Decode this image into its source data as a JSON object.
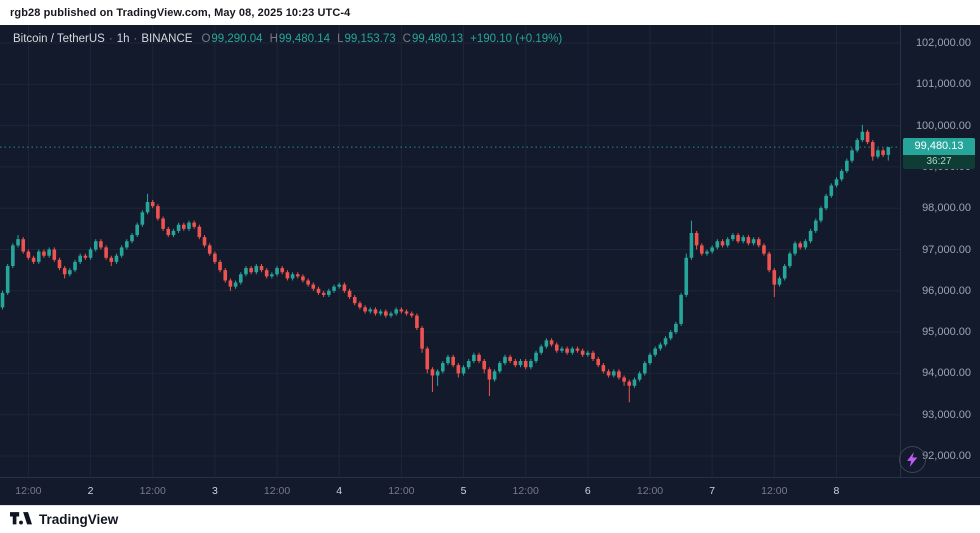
{
  "header": {
    "text": "rgb28 published on TradingView.com, May 08, 2025 10:23 UTC-4"
  },
  "legend": {
    "title": "Bitcoin / TetherUS",
    "dot1": "·",
    "interval": "1h",
    "dot2": "·",
    "exchange": "BINANCE",
    "o_label": "O",
    "o_value": "99,290.04",
    "h_label": "H",
    "h_value": "99,480.14",
    "l_label": "L",
    "l_value": "99,153.73",
    "c_label": "C",
    "c_value": "99,480.13",
    "change": "+190.10 (+0.19%)"
  },
  "last_price": {
    "label": "99,480.13",
    "countdown": "36:27",
    "value": 99480.13
  },
  "footer": {
    "brand": "TradingView"
  },
  "colors": {
    "background": "#131a2b",
    "up": "#26a69a",
    "down": "#ef5350",
    "grid": "#1d2638",
    "separator": "#27314a",
    "axis_text": "#9aa5b5",
    "time_major_text": "#cdd4e0",
    "muted_text": "#787b86",
    "legend_text": "#d6d9e0",
    "countdown_bg": "#0f3d36",
    "countdown_text": "#a9dccb",
    "bolt": "#bd5df5"
  },
  "chart_data": {
    "type": "candlestick",
    "title": "Bitcoin / TetherUS",
    "interval": "1h",
    "exchange": "BINANCE",
    "ohlc_current": {
      "open": 99290.04,
      "high": 99480.14,
      "low": 99153.73,
      "close": 99480.13,
      "change": 190.1,
      "change_pct": 0.19
    },
    "last_price": 99480.13,
    "price_axis": {
      "min": 92000,
      "max": 102000,
      "tick_step": 1000,
      "ticks": [
        {
          "label": "102,000.00",
          "value": 102000
        },
        {
          "label": "101,000.00",
          "value": 101000
        },
        {
          "label": "100,000.00",
          "value": 100000
        },
        {
          "label": "99,000.00",
          "value": 99000
        },
        {
          "label": "98,000.00",
          "value": 98000
        },
        {
          "label": "97,000.00",
          "value": 97000
        },
        {
          "label": "96,000.00",
          "value": 96000
        },
        {
          "label": "95,000.00",
          "value": 95000
        },
        {
          "label": "94,000.00",
          "value": 94000
        },
        {
          "label": "93,000.00",
          "value": 93000
        },
        {
          "label": "92,000.00",
          "value": 92000
        }
      ]
    },
    "time_axis": {
      "ticks": [
        {
          "label": "12:00",
          "index": 5,
          "major": false
        },
        {
          "label": "2",
          "index": 17,
          "major": true
        },
        {
          "label": "12:00",
          "index": 29,
          "major": false
        },
        {
          "label": "3",
          "index": 41,
          "major": true
        },
        {
          "label": "12:00",
          "index": 53,
          "major": false
        },
        {
          "label": "4",
          "index": 65,
          "major": true
        },
        {
          "label": "12:00",
          "index": 77,
          "major": false
        },
        {
          "label": "5",
          "index": 89,
          "major": true
        },
        {
          "label": "12:00",
          "index": 101,
          "major": false
        },
        {
          "label": "6",
          "index": 113,
          "major": true
        },
        {
          "label": "12:00",
          "index": 125,
          "major": false
        },
        {
          "label": "7",
          "index": 137,
          "major": true
        },
        {
          "label": "12:00",
          "index": 149,
          "major": false
        },
        {
          "label": "8",
          "index": 161,
          "major": true
        }
      ]
    },
    "candles": [
      [
        95600,
        96000,
        95550,
        95950
      ],
      [
        95950,
        96650,
        95900,
        96600
      ],
      [
        96600,
        97150,
        96550,
        97100
      ],
      [
        97100,
        97350,
        97050,
        97250
      ],
      [
        97250,
        97300,
        96900,
        96950
      ],
      [
        96950,
        97000,
        96750,
        96800
      ],
      [
        96800,
        96850,
        96650,
        96700
      ],
      [
        96700,
        97000,
        96650,
        96950
      ],
      [
        96950,
        97000,
        96800,
        96850
      ],
      [
        96850,
        97050,
        96800,
        97000
      ],
      [
        97000,
        97050,
        96700,
        96750
      ],
      [
        96750,
        96800,
        96500,
        96550
      ],
      [
        96550,
        96600,
        96300,
        96400
      ],
      [
        96400,
        96550,
        96350,
        96500
      ],
      [
        96500,
        96750,
        96450,
        96700
      ],
      [
        96700,
        96900,
        96650,
        96850
      ],
      [
        96850,
        96900,
        96750,
        96800
      ],
      [
        96800,
        97050,
        96750,
        97000
      ],
      [
        97000,
        97250,
        96950,
        97200
      ],
      [
        97200,
        97250,
        97000,
        97050
      ],
      [
        97050,
        97100,
        96750,
        96800
      ],
      [
        96800,
        96850,
        96600,
        96700
      ],
      [
        96700,
        96900,
        96650,
        96850
      ],
      [
        96850,
        97100,
        96800,
        97050
      ],
      [
        97050,
        97250,
        97000,
        97200
      ],
      [
        97200,
        97400,
        97150,
        97350
      ],
      [
        97350,
        97650,
        97300,
        97600
      ],
      [
        97600,
        97950,
        97550,
        97900
      ],
      [
        97900,
        98350,
        97850,
        98150
      ],
      [
        98150,
        98200,
        98000,
        98050
      ],
      [
        98050,
        98100,
        97700,
        97750
      ],
      [
        97750,
        97800,
        97450,
        97500
      ],
      [
        97500,
        97550,
        97300,
        97350
      ],
      [
        97350,
        97500,
        97300,
        97450
      ],
      [
        97450,
        97650,
        97400,
        97600
      ],
      [
        97600,
        97650,
        97450,
        97500
      ],
      [
        97500,
        97700,
        97450,
        97650
      ],
      [
        97650,
        97700,
        97500,
        97550
      ],
      [
        97550,
        97600,
        97250,
        97300
      ],
      [
        97300,
        97350,
        97050,
        97100
      ],
      [
        97100,
        97150,
        96850,
        96900
      ],
      [
        96900,
        96950,
        96650,
        96700
      ],
      [
        96700,
        96750,
        96450,
        96500
      ],
      [
        96500,
        96550,
        96200,
        96250
      ],
      [
        96250,
        96300,
        96000,
        96100
      ],
      [
        96100,
        96250,
        96050,
        96200
      ],
      [
        96200,
        96450,
        96150,
        96400
      ],
      [
        96400,
        96600,
        96350,
        96550
      ],
      [
        96550,
        96600,
        96400,
        96450
      ],
      [
        96450,
        96650,
        96400,
        96600
      ],
      [
        96600,
        96650,
        96450,
        96500
      ],
      [
        96500,
        96550,
        96300,
        96350
      ],
      [
        96350,
        96450,
        96300,
        96400
      ],
      [
        96400,
        96600,
        96350,
        96550
      ],
      [
        96550,
        96600,
        96400,
        96450
      ],
      [
        96450,
        96500,
        96250,
        96300
      ],
      [
        96300,
        96450,
        96250,
        96400
      ],
      [
        96400,
        96450,
        96300,
        96350
      ],
      [
        96350,
        96400,
        96200,
        96250
      ],
      [
        96250,
        96300,
        96100,
        96150
      ],
      [
        96150,
        96200,
        96000,
        96050
      ],
      [
        96050,
        96100,
        95900,
        95950
      ],
      [
        95950,
        96000,
        95850,
        95900
      ],
      [
        95900,
        96050,
        95850,
        96000
      ],
      [
        96000,
        96150,
        95950,
        96100
      ],
      [
        96100,
        96200,
        96050,
        96150
      ],
      [
        96150,
        96200,
        95950,
        96000
      ],
      [
        96000,
        96050,
        95800,
        95850
      ],
      [
        95850,
        95900,
        95650,
        95700
      ],
      [
        95700,
        95750,
        95550,
        95600
      ],
      [
        95600,
        95650,
        95450,
        95500
      ],
      [
        95500,
        95600,
        95450,
        95550
      ],
      [
        95550,
        95600,
        95400,
        95450
      ],
      [
        95450,
        95550,
        95400,
        95500
      ],
      [
        95500,
        95550,
        95350,
        95400
      ],
      [
        95400,
        95500,
        95350,
        95450
      ],
      [
        95450,
        95600,
        95400,
        95550
      ],
      [
        95550,
        95600,
        95450,
        95500
      ],
      [
        95500,
        95550,
        95400,
        95450
      ],
      [
        95450,
        95500,
        95350,
        95400
      ],
      [
        95400,
        95450,
        95050,
        95100
      ],
      [
        95100,
        95150,
        94500,
        94600
      ],
      [
        94600,
        94650,
        94000,
        94100
      ],
      [
        94100,
        94150,
        93550,
        93950
      ],
      [
        93950,
        94100,
        93700,
        94050
      ],
      [
        94050,
        94300,
        94000,
        94250
      ],
      [
        94250,
        94450,
        94200,
        94400
      ],
      [
        94400,
        94450,
        94150,
        94200
      ],
      [
        94200,
        94250,
        93900,
        94000
      ],
      [
        94000,
        94200,
        93950,
        94150
      ],
      [
        94150,
        94350,
        94100,
        94300
      ],
      [
        94300,
        94500,
        94250,
        94450
      ],
      [
        94450,
        94500,
        94250,
        94300
      ],
      [
        94300,
        94350,
        94000,
        94100
      ],
      [
        94100,
        94150,
        93450,
        93850
      ],
      [
        93850,
        94100,
        93800,
        94050
      ],
      [
        94050,
        94300,
        94000,
        94250
      ],
      [
        94250,
        94450,
        94200,
        94400
      ],
      [
        94400,
        94450,
        94250,
        94300
      ],
      [
        94300,
        94350,
        94150,
        94200
      ],
      [
        94200,
        94350,
        94150,
        94300
      ],
      [
        94300,
        94350,
        94100,
        94150
      ],
      [
        94150,
        94350,
        94100,
        94300
      ],
      [
        94300,
        94550,
        94250,
        94500
      ],
      [
        94500,
        94700,
        94450,
        94650
      ],
      [
        94650,
        94850,
        94600,
        94800
      ],
      [
        94800,
        94850,
        94650,
        94700
      ],
      [
        94700,
        94750,
        94500,
        94550
      ],
      [
        94550,
        94650,
        94500,
        94600
      ],
      [
        94600,
        94650,
        94450,
        94500
      ],
      [
        94500,
        94650,
        94450,
        94600
      ],
      [
        94600,
        94650,
        94500,
        94550
      ],
      [
        94550,
        94600,
        94400,
        94450
      ],
      [
        94450,
        94550,
        94400,
        94500
      ],
      [
        94500,
        94550,
        94300,
        94350
      ],
      [
        94350,
        94400,
        94150,
        94200
      ],
      [
        94200,
        94250,
        94000,
        94050
      ],
      [
        94050,
        94100,
        93900,
        93950
      ],
      [
        93950,
        94100,
        93900,
        94050
      ],
      [
        94050,
        94100,
        93850,
        93900
      ],
      [
        93900,
        93950,
        93700,
        93800
      ],
      [
        93800,
        93850,
        93300,
        93700
      ],
      [
        93700,
        93900,
        93650,
        93850
      ],
      [
        93850,
        94050,
        93800,
        94000
      ],
      [
        94000,
        94300,
        93950,
        94250
      ],
      [
        94250,
        94500,
        94200,
        94450
      ],
      [
        94450,
        94650,
        94400,
        94600
      ],
      [
        94600,
        94750,
        94550,
        94700
      ],
      [
        94700,
        94900,
        94650,
        94850
      ],
      [
        94850,
        95050,
        94800,
        95000
      ],
      [
        95000,
        95250,
        94950,
        95200
      ],
      [
        95200,
        95950,
        95150,
        95900
      ],
      [
        95900,
        96900,
        95850,
        96800
      ],
      [
        96800,
        97700,
        96750,
        97400
      ],
      [
        97400,
        97450,
        97000,
        97100
      ],
      [
        97100,
        97150,
        96850,
        96900
      ],
      [
        96900,
        97000,
        96850,
        96950
      ],
      [
        96950,
        97100,
        96900,
        97050
      ],
      [
        97050,
        97250,
        97000,
        97200
      ],
      [
        97200,
        97250,
        97050,
        97100
      ],
      [
        97100,
        97300,
        97050,
        97250
      ],
      [
        97250,
        97400,
        97200,
        97350
      ],
      [
        97350,
        97400,
        97150,
        97200
      ],
      [
        97200,
        97350,
        97150,
        97300
      ],
      [
        97300,
        97350,
        97100,
        97150
      ],
      [
        97150,
        97300,
        97100,
        97250
      ],
      [
        97250,
        97300,
        97050,
        97100
      ],
      [
        97100,
        97150,
        96850,
        96900
      ],
      [
        96900,
        96950,
        96450,
        96500
      ],
      [
        96500,
        96550,
        95850,
        96150
      ],
      [
        96150,
        96350,
        96100,
        96300
      ],
      [
        96300,
        96650,
        96250,
        96600
      ],
      [
        96600,
        96950,
        96550,
        96900
      ],
      [
        96900,
        97200,
        96850,
        97150
      ],
      [
        97150,
        97200,
        97000,
        97050
      ],
      [
        97050,
        97250,
        97000,
        97200
      ],
      [
        97200,
        97500,
        97150,
        97450
      ],
      [
        97450,
        97750,
        97400,
        97700
      ],
      [
        97700,
        98050,
        97650,
        98000
      ],
      [
        98000,
        98350,
        97950,
        98300
      ],
      [
        98300,
        98600,
        98250,
        98550
      ],
      [
        98550,
        98750,
        98500,
        98700
      ],
      [
        98700,
        98950,
        98650,
        98900
      ],
      [
        98900,
        99200,
        98850,
        99150
      ],
      [
        99150,
        99450,
        99100,
        99400
      ],
      [
        99400,
        99700,
        99350,
        99650
      ],
      [
        99650,
        100020,
        99600,
        99850
      ],
      [
        99850,
        99900,
        99550,
        99600
      ],
      [
        99600,
        99650,
        99150,
        99250
      ],
      [
        99250,
        99450,
        99200,
        99400
      ],
      [
        99400,
        99450,
        99240,
        99290
      ],
      [
        99290.04,
        99480.14,
        99153.73,
        99480.13
      ]
    ]
  }
}
